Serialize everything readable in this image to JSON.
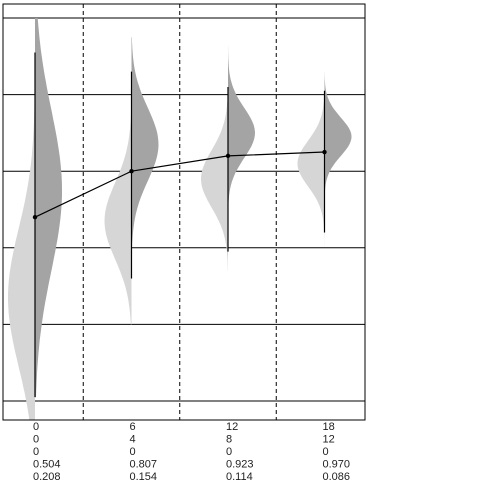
{
  "chart_data": {
    "type": "violin",
    "title": "",
    "xlabel": "",
    "ylabel": "",
    "grid": true,
    "columns": [
      {
        "labels": [
          "0",
          "0",
          "0",
          "0.504",
          "0.208"
        ],
        "mean": 0.48,
        "interval": [
          0.01,
          0.91
        ],
        "light": {
          "center": 0.27,
          "spread": 0.18,
          "low": -0.05,
          "high": 0.99
        },
        "dark": {
          "center": 0.55,
          "spread": 0.21,
          "low": 0.01,
          "high": 1.0
        }
      },
      {
        "labels": [
          "6",
          "4",
          "0",
          "0.807",
          "0.154"
        ],
        "mean": 0.6,
        "interval": [
          0.32,
          0.86
        ],
        "light": {
          "center": 0.47,
          "spread": 0.1,
          "low": 0.2,
          "high": 0.84
        },
        "dark": {
          "center": 0.67,
          "spread": 0.095,
          "low": 0.32,
          "high": 0.95
        }
      },
      {
        "labels": [
          "12",
          "8",
          "0",
          "0.923",
          "0.114"
        ],
        "mean": 0.64,
        "interval": [
          0.39,
          0.82
        ],
        "light": {
          "center": 0.58,
          "spread": 0.075,
          "low": 0.34,
          "high": 0.78
        },
        "dark": {
          "center": 0.7,
          "spread": 0.065,
          "low": 0.39,
          "high": 0.94
        }
      },
      {
        "labels": [
          "18",
          "12",
          "0",
          "0.970",
          "0.086"
        ],
        "mean": 0.65,
        "interval": [
          0.44,
          0.81
        ],
        "light": {
          "center": 0.62,
          "spread": 0.06,
          "low": 0.36,
          "high": 0.78
        },
        "dark": {
          "center": 0.69,
          "spread": 0.05,
          "low": 0.44,
          "high": 0.86
        }
      }
    ],
    "colors": {
      "light": "#d6d6d6",
      "dark": "#a4a4a4",
      "line": "#000000"
    }
  }
}
